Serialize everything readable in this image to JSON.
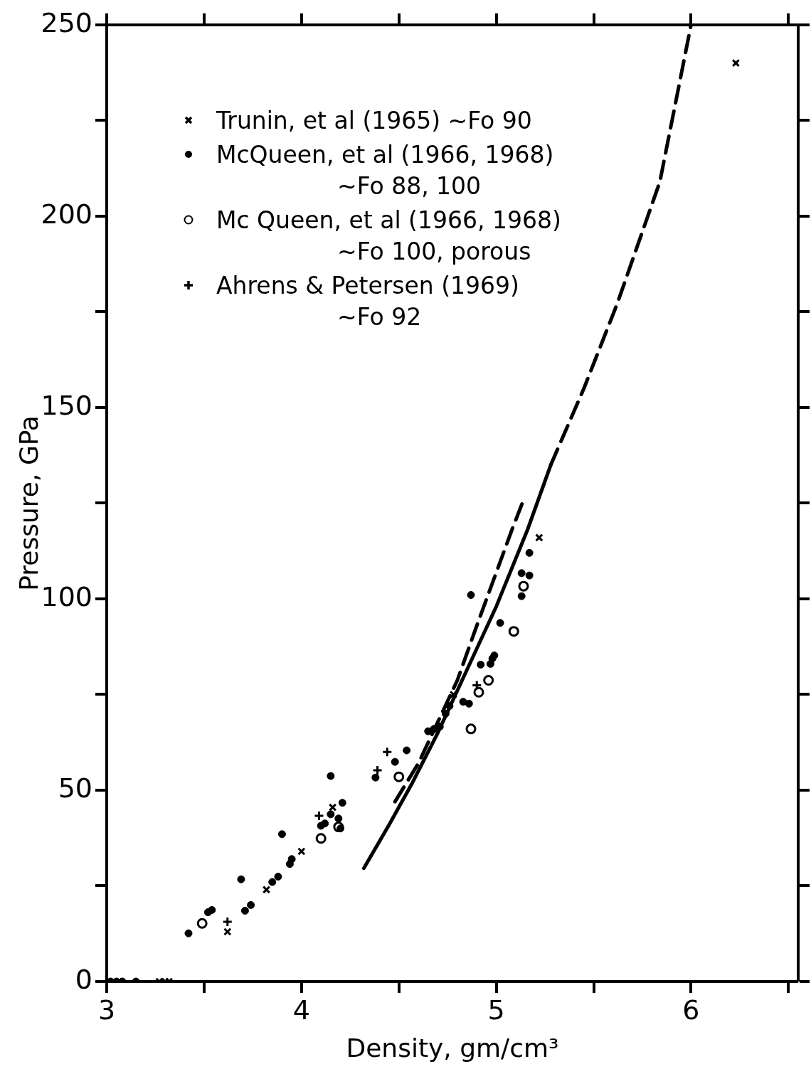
{
  "chart_data": {
    "type": "scatter",
    "xlabel": "Density, gm/cm³",
    "ylabel": "Pressure, GPa",
    "xlim": [
      3,
      6.55
    ],
    "ylim": [
      0,
      250
    ],
    "xticks": [
      3,
      {
        "value": 3.5,
        "label": null
      },
      4,
      {
        "value": 4.5,
        "label": null
      },
      5,
      {
        "value": 5.5,
        "label": null
      },
      6,
      {
        "value": 6.5,
        "label": null
      }
    ],
    "yticks": [
      0,
      {
        "value": 25,
        "label": null
      },
      50,
      {
        "value": 75,
        "label": null
      },
      100,
      {
        "value": 125,
        "label": null
      },
      150,
      {
        "value": 175,
        "label": null
      },
      200,
      {
        "value": 225,
        "label": null
      },
      250
    ],
    "grid": false,
    "legend": "top left",
    "series": [
      {
        "name": "Trunin, et al (1965) ~Fo 90",
        "marker": "cross",
        "color": "#000000",
        "x": [
          3.27,
          3.3,
          3.32,
          3.62,
          3.82,
          4.0,
          4.16,
          4.78,
          5.22,
          6.23
        ],
        "values": [
          0,
          0,
          0,
          13,
          24,
          34,
          45.5,
          75,
          116,
          240
        ]
      },
      {
        "name": "McQueen, et al (1966, 1968) ~Fo 88, 100",
        "marker": "circle",
        "color": "#000000",
        "x": [
          3.02,
          3.05,
          3.08,
          3.15,
          3.42,
          3.52,
          3.54,
          3.69,
          3.71,
          3.74,
          3.85,
          3.88,
          3.9,
          3.94,
          3.95,
          4.1,
          4.12,
          4.15,
          4.15,
          4.19,
          4.2,
          4.21,
          4.38,
          4.48,
          4.54,
          4.65,
          4.68,
          4.71,
          4.74,
          4.76,
          4.83,
          4.86,
          4.87,
          4.92,
          4.97,
          4.98,
          4.99,
          5.02,
          5.13,
          5.13,
          5.17,
          5.17
        ],
        "values": [
          0,
          0,
          0,
          0,
          12.6,
          18.1,
          18.7,
          26.7,
          18.5,
          20,
          26,
          27.4,
          38.5,
          30.7,
          32,
          40.7,
          41.3,
          53.7,
          43.7,
          42.6,
          40,
          46.7,
          53.3,
          57.4,
          60.4,
          65.4,
          66,
          66.6,
          70,
          72,
          73.1,
          72.6,
          101,
          82.8,
          83,
          84.4,
          85.2,
          93.7,
          106.7,
          100.7,
          106.1,
          112
        ]
      },
      {
        "name": "Mc Queen, et al (1966, 1968) ~Fo 100, porous",
        "marker": "open_circle",
        "color": "#000000",
        "x": [
          3.49,
          4.1,
          4.19,
          4.5,
          4.87,
          4.91,
          4.96,
          5.09,
          5.14
        ],
        "values": [
          15.2,
          37.4,
          40.4,
          53.5,
          66,
          75.6,
          78.7,
          91.5,
          103.3
        ]
      },
      {
        "name": "Ahrens & Petersen (1969) ~Fo 92",
        "marker": "plus",
        "color": "#000000",
        "x": [
          3.62,
          4.09,
          4.39,
          4.44,
          4.9
        ],
        "values": [
          15.6,
          43.3,
          55.2,
          60,
          77.4
        ]
      },
      {
        "type": "line",
        "line_style": "solid",
        "marker": "none",
        "color": "#000000",
        "x": [
          4.32,
          4.45,
          4.57,
          4.7,
          4.83,
          5.0,
          5.16,
          5.28
        ],
        "values": [
          29.6,
          41,
          52,
          65,
          79.3,
          98,
          118,
          135
        ]
      },
      {
        "type": "line",
        "line_style": "dashed",
        "marker": "none",
        "color": "#000000",
        "x": [
          5.28,
          5.45,
          5.62,
          5.84,
          6.0
        ],
        "values": [
          135,
          155,
          177,
          209,
          250
        ]
      },
      {
        "type": "line",
        "line_style": "dashed",
        "marker": "none",
        "color": "#000000",
        "x": [
          4.48,
          4.6,
          4.72,
          4.8,
          4.9,
          5.08,
          5.145
        ],
        "values": [
          47,
          57,
          70,
          78.7,
          93,
          118,
          126.5
        ]
      }
    ]
  }
}
